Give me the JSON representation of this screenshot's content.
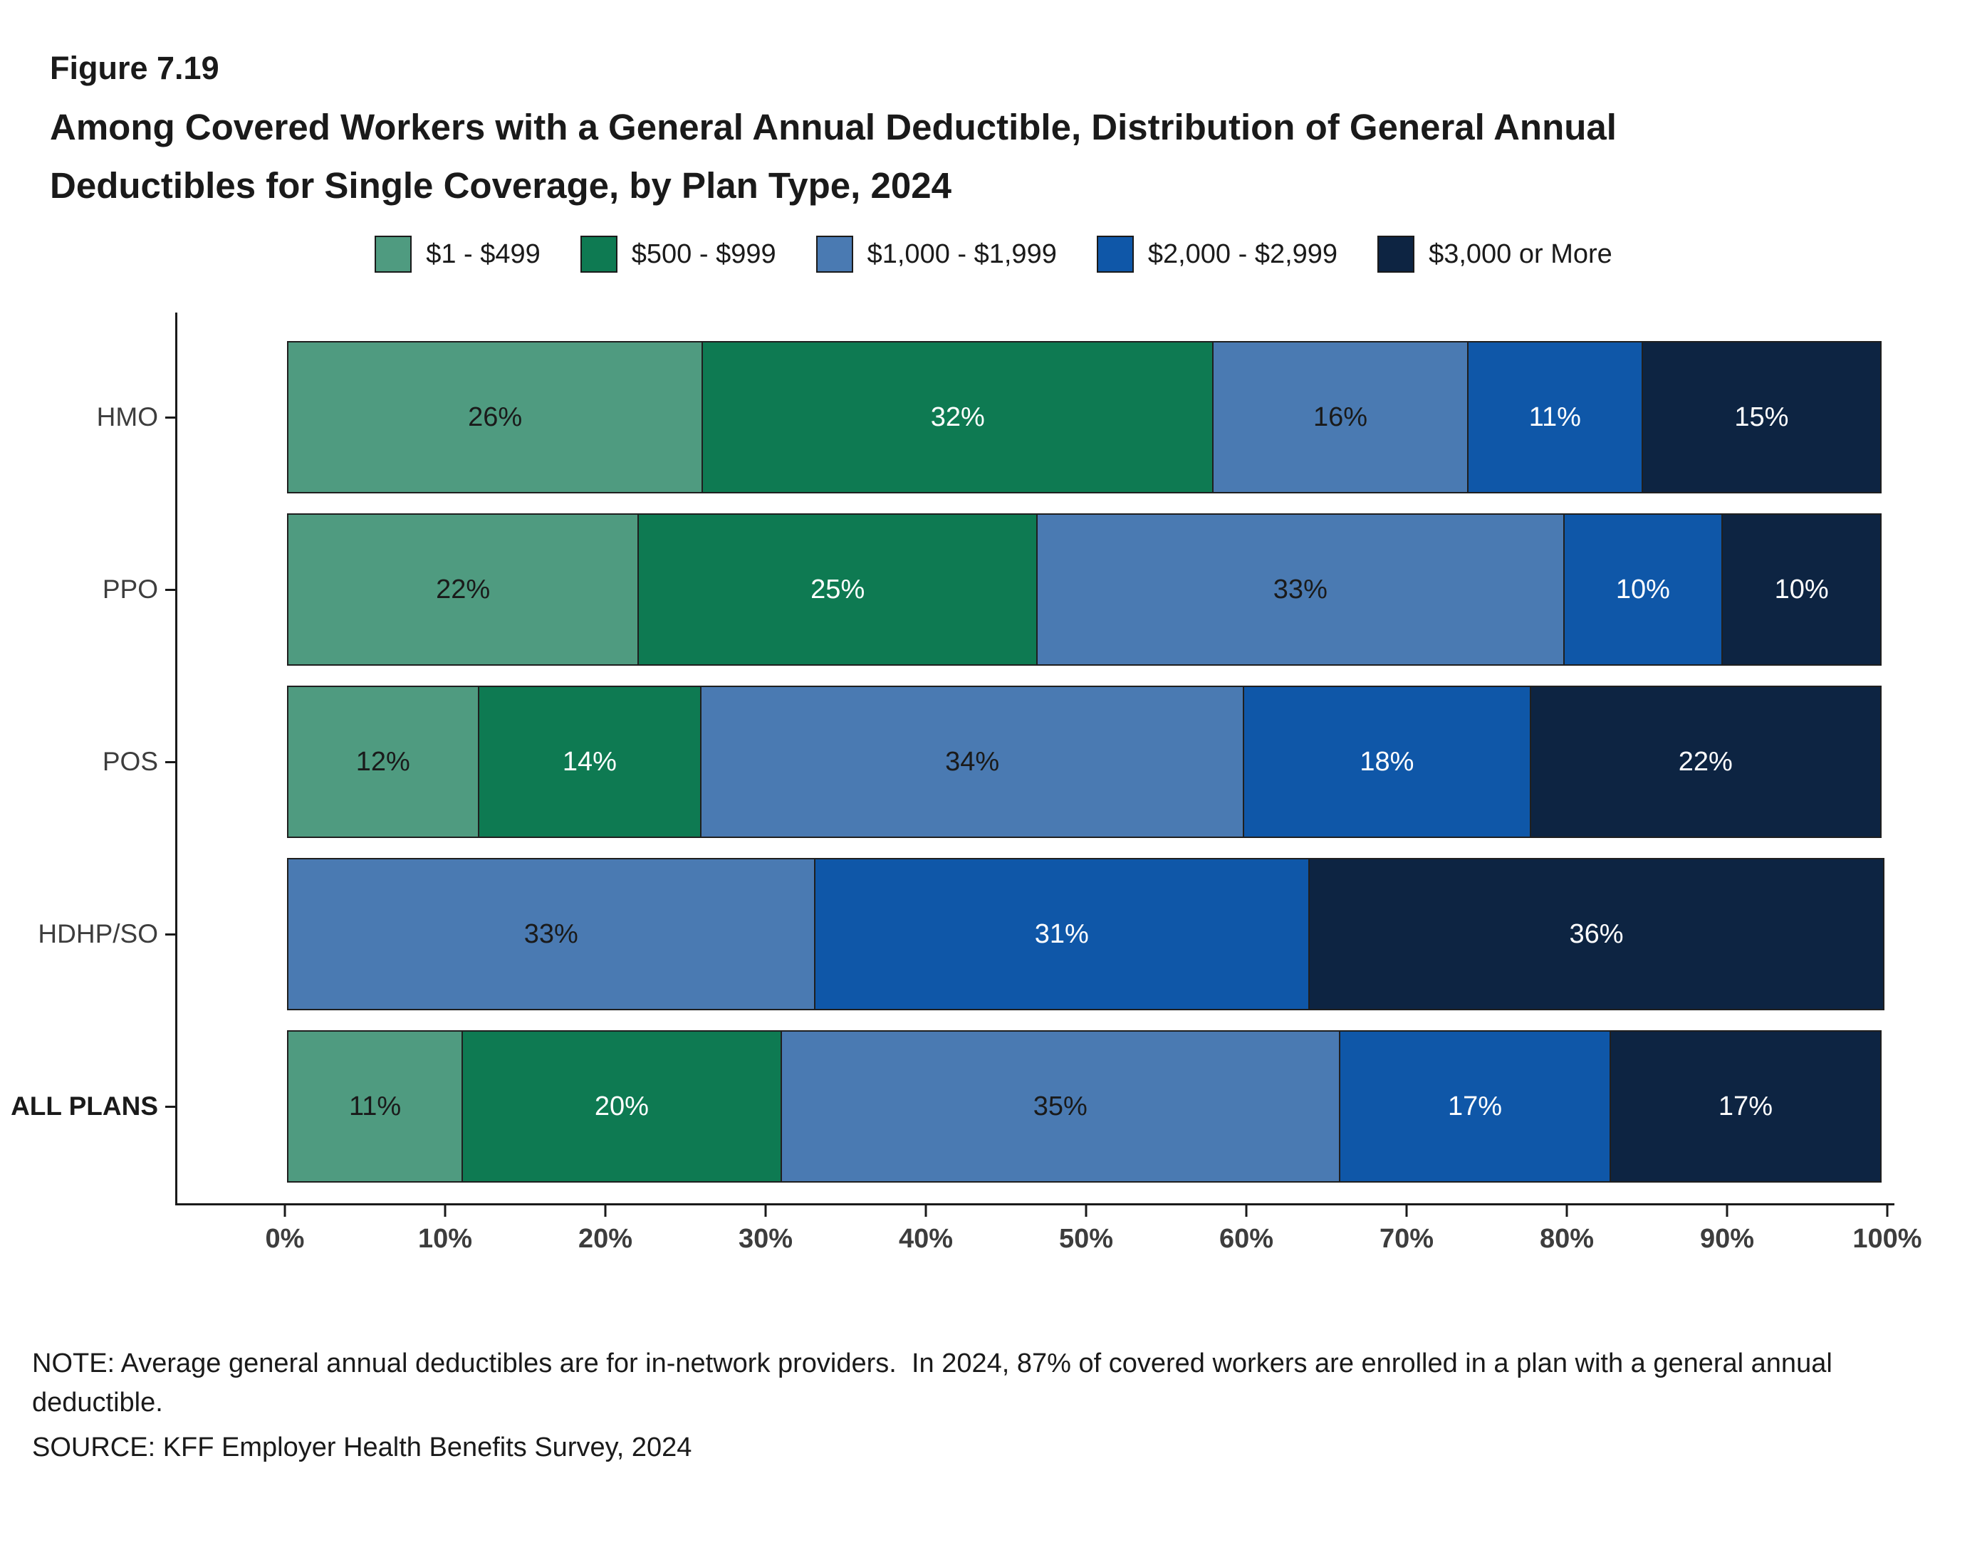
{
  "figure": {
    "number": "Figure 7.19",
    "title_line1": "Among Covered Workers with a General Annual Deductible, Distribution of General Annual",
    "title_line2": "Deductibles for Single Coverage, by Plan Type, 2024"
  },
  "chart_data": {
    "type": "bar",
    "orientation": "horizontal",
    "stacked": true,
    "categories": [
      "HMO",
      "PPO",
      "POS",
      "HDHP/SO",
      "ALL PLANS"
    ],
    "series": [
      {
        "name": "$1 - $499",
        "color": "#4f9b80",
        "label_color": "#1a1a1a",
        "values": [
          26,
          22,
          12,
          0,
          11
        ]
      },
      {
        "name": "$500 - $999",
        "color": "#0e7a52",
        "label_color": "#ffffff",
        "values": [
          32,
          25,
          14,
          0,
          20
        ]
      },
      {
        "name": "$1,000 - $1,999",
        "color": "#4a7ab2",
        "label_color": "#1a1a1a",
        "values": [
          16,
          33,
          34,
          33,
          35
        ]
      },
      {
        "name": "$2,000 - $2,999",
        "color": "#0f57a8",
        "label_color": "#ffffff",
        "values": [
          11,
          10,
          18,
          31,
          17
        ]
      },
      {
        "name": "$3,000 or More",
        "color": "#0d2442",
        "label_color": "#ffffff",
        "values": [
          15,
          10,
          22,
          36,
          17
        ]
      }
    ],
    "value_suffix": "%",
    "xlim": [
      0,
      100
    ],
    "x_ticks": [
      "0%",
      "10%",
      "20%",
      "30%",
      "40%",
      "50%",
      "60%",
      "70%",
      "80%",
      "90%",
      "100%"
    ],
    "legend_position": "top",
    "grid": false
  },
  "notes": {
    "note_line": "NOTE: Average general annual deductibles are for in-network providers.  In 2024, 87% of covered workers are enrolled in a plan with a general annual deductible.",
    "source_line": "SOURCE: KFF Employer Health Benefits Survey, 2024"
  }
}
